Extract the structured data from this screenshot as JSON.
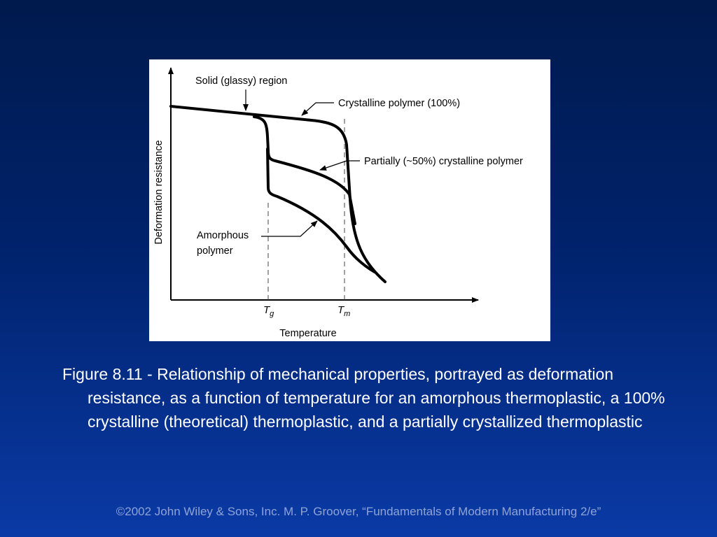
{
  "figure": {
    "y_axis_label": "Deformation resistance",
    "x_axis_label": "Temperature",
    "tick_tg_main": "T",
    "tick_tg_sub": "g",
    "tick_tm_main": "T",
    "tick_tm_sub": "m",
    "label_solid": "Solid (glassy) region",
    "label_crystalline": "Crystalline polymer (100%)",
    "label_partial": "Partially (~50%) crystalline polymer",
    "label_amorphous_line1": "Amorphous",
    "label_amorphous_line2": "polymer"
  },
  "caption": "Figure 8.11 - Relationship of mechanical properties, portrayed as deformation resistance, as a function of temperature for an amorphous thermoplastic, a 100% crystalline (theoretical) thermoplastic, and a partially crystallized thermoplastic",
  "footer": "©2002 John Wiley & Sons, Inc.  M. P. Groover, “Fundamentals of Modern Manufacturing 2/e”",
  "colors": {
    "background_top": "#001a4d",
    "background_bottom": "#0a3aa6",
    "caption_text": "#ffffff",
    "footer_text": "#8fa3d6"
  }
}
